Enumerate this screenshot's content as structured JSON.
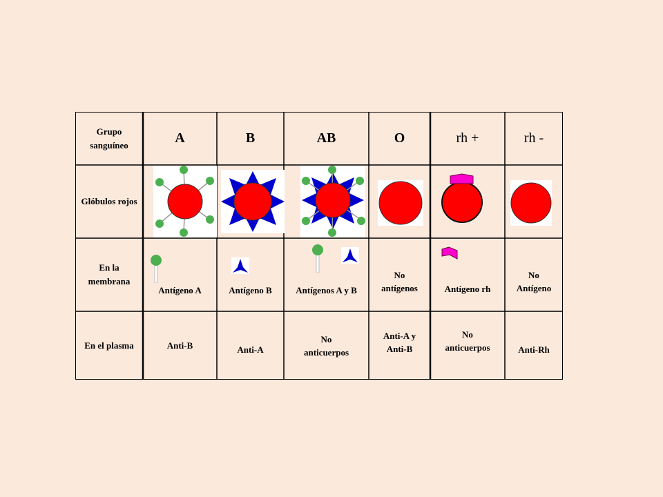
{
  "header": {
    "row_label": "Grupo sanguíneo",
    "groups": [
      "A",
      "B",
      "AB",
      "O",
      "rh +",
      "rh -"
    ]
  },
  "rows": [
    {
      "label": "Glóbulos rojos",
      "cells": []
    },
    {
      "label": "En la membrana",
      "cells": [
        "Antígeno A",
        "Antígeno B",
        "Antígenos A y B",
        "No antígenos",
        "Antígeno rh",
        "No Antígeno"
      ]
    },
    {
      "label": "En el plasma",
      "cells": [
        "Anti-B",
        "Anti-A",
        "No anticuerpos",
        "Anti-A y Anti-B",
        "No anticuerpos",
        "Anti-Rh"
      ]
    }
  ],
  "icons": {
    "red_cell": "red-blood-cell",
    "antigen_a": "green-lollipop-antigen",
    "antigen_b": "blue-triangle-antigen",
    "antigen_rh": "magenta-rh-antigen"
  },
  "colors": {
    "background": "#fbe9dc",
    "cell": "#ff0000",
    "antigen_a": "#4caf50",
    "antigen_b": "#0000cc",
    "antigen_rh": "#ff00cc"
  }
}
